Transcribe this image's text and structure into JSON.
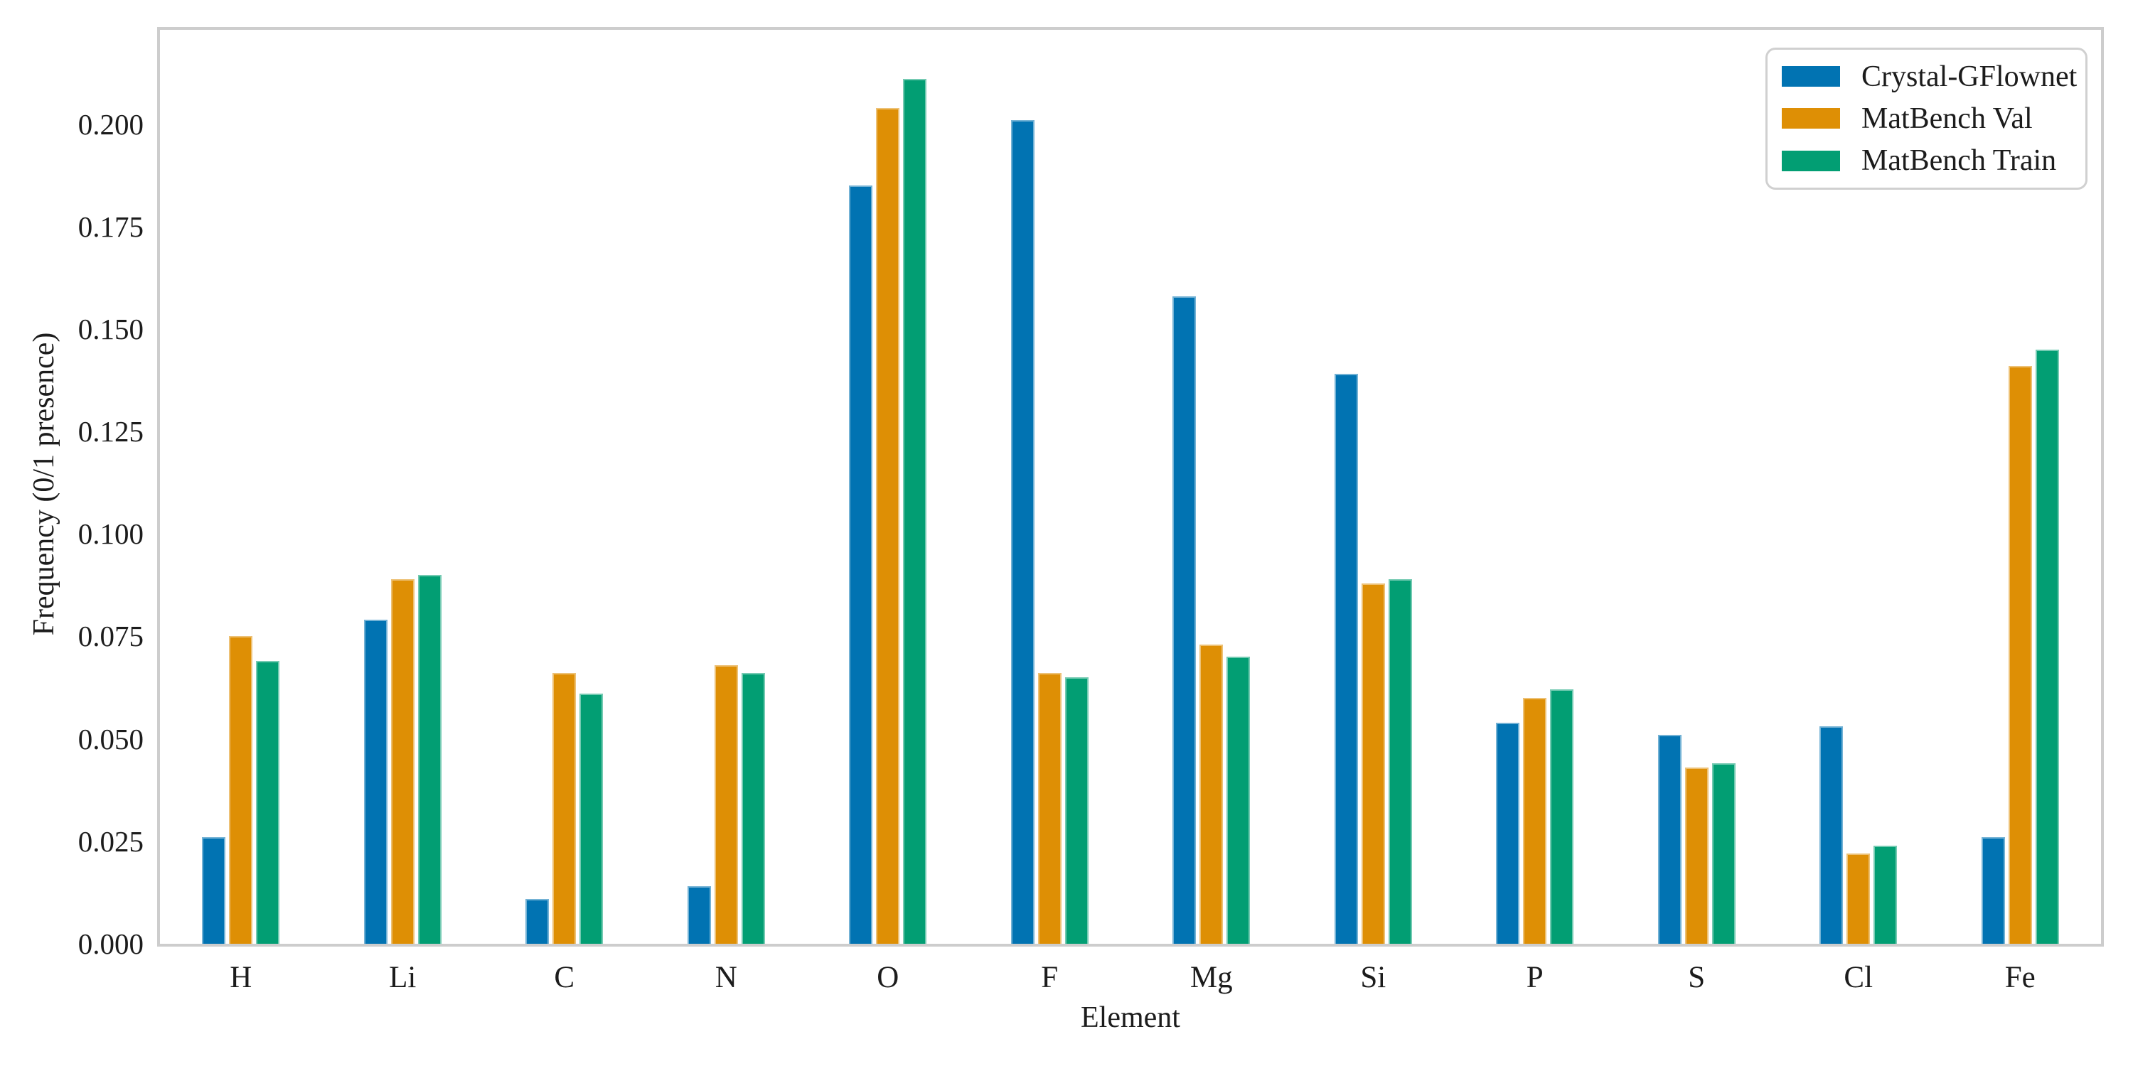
{
  "figure": {
    "background_color": "#ffffff",
    "spine_color": "#cdcdcd",
    "text_color": "#1c1c1c"
  },
  "chart_data": {
    "type": "bar",
    "title": "",
    "xlabel": "Element",
    "ylabel": "Frequency (0/1 presence)",
    "categories": [
      "H",
      "Li",
      "C",
      "N",
      "O",
      "F",
      "Mg",
      "Si",
      "P",
      "S",
      "Cl",
      "Fe"
    ],
    "series": [
      {
        "name": "Crystal-GFlownet",
        "color": "#0173b2",
        "values": [
          0.026,
          0.079,
          0.011,
          0.014,
          0.185,
          0.201,
          0.158,
          0.139,
          0.054,
          0.051,
          0.053,
          0.026
        ]
      },
      {
        "name": "MatBench Val",
        "color": "#de8f05",
        "values": [
          0.075,
          0.089,
          0.066,
          0.068,
          0.204,
          0.066,
          0.073,
          0.088,
          0.06,
          0.043,
          0.022,
          0.141
        ]
      },
      {
        "name": "MatBench Train",
        "color": "#029e73",
        "values": [
          0.069,
          0.09,
          0.061,
          0.066,
          0.211,
          0.065,
          0.07,
          0.089,
          0.062,
          0.044,
          0.024,
          0.145
        ]
      }
    ],
    "ylim": [
      0,
      0.223
    ],
    "yticks": [
      0.0,
      0.025,
      0.05,
      0.075,
      0.1,
      0.125,
      0.15,
      0.175,
      0.2
    ],
    "ytick_decimals": 3,
    "grid": false,
    "legend_position": "upper-right"
  }
}
